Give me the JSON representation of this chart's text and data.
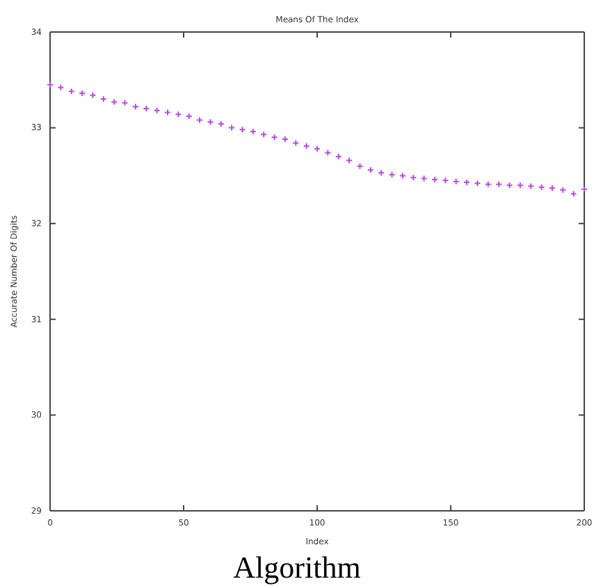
{
  "chart_data": {
    "type": "scatter",
    "title": "Means Of The Index",
    "xlabel": "Index",
    "ylabel": "Accurate Number Of Digits",
    "annotations": [
      "Algorithm"
    ],
    "x": [
      0,
      4,
      8,
      12,
      16,
      20,
      24,
      28,
      32,
      36,
      40,
      44,
      48,
      52,
      56,
      60,
      64,
      68,
      72,
      76,
      80,
      84,
      88,
      92,
      96,
      100,
      104,
      108,
      112,
      116,
      120,
      124,
      128,
      132,
      136,
      140,
      144,
      148,
      152,
      156,
      160,
      164,
      168,
      172,
      176,
      180,
      184,
      188,
      192,
      196,
      200
    ],
    "series": [
      {
        "color": "#b84ae6",
        "values": [
          33.45,
          33.42,
          33.38,
          33.36,
          33.34,
          33.3,
          33.27,
          33.26,
          33.22,
          33.2,
          33.18,
          33.16,
          33.14,
          33.12,
          33.08,
          33.06,
          33.04,
          33.0,
          32.98,
          32.96,
          32.93,
          32.9,
          32.88,
          32.84,
          32.81,
          32.78,
          32.74,
          32.7,
          32.66,
          32.6,
          32.56,
          32.53,
          32.51,
          32.5,
          32.48,
          32.47,
          32.46,
          32.45,
          32.44,
          32.43,
          32.42,
          32.41,
          32.41,
          32.4,
          32.4,
          32.39,
          32.38,
          32.37,
          32.35,
          32.31,
          32.36
        ]
      }
    ],
    "xlim": [
      0,
      200
    ],
    "xticks": [
      0,
      50,
      100,
      150,
      200
    ],
    "ylim": [
      29,
      34
    ],
    "yticks": [
      29,
      30,
      31,
      32,
      33,
      34
    ],
    "marker": "cross",
    "grid": false
  }
}
